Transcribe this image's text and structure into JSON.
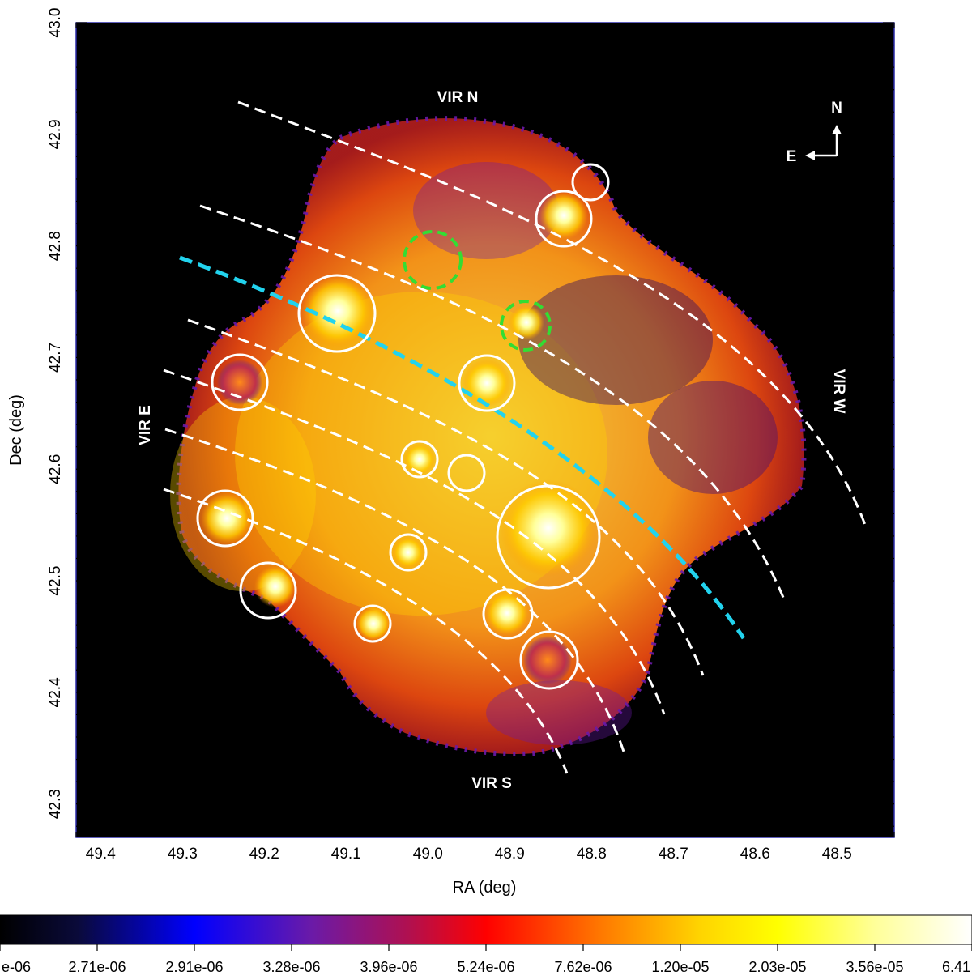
{
  "chart_data": {
    "type": "heatmap",
    "title": "",
    "xlabel": "RA (deg)",
    "ylabel": "Dec (deg)",
    "xlim": [
      49.43,
      48.43
    ],
    "ylim": [
      42.27,
      43.0
    ],
    "x_ticks": [
      "49.4",
      "49.3",
      "49.2",
      "49.1",
      "49.0",
      "48.9",
      "48.8",
      "48.7",
      "48.6",
      "48.5"
    ],
    "y_ticks": [
      "42.3",
      "42.4",
      "42.5",
      "42.6",
      "42.7",
      "42.8",
      "42.9",
      "43.0"
    ],
    "colorbar_labels": [
      "e-06",
      "2.71e-06",
      "2.91e-06",
      "3.28e-06",
      "3.96e-06",
      "5.24e-06",
      "7.62e-06",
      "1.20e-05",
      "2.03e-05",
      "3.56e-05",
      "6.41"
    ],
    "region_labels": [
      "VIR N",
      "VIR S",
      "VIR E",
      "VIR W"
    ],
    "compass": {
      "north": "N",
      "east": "E"
    },
    "excluded_sources": [
      {
        "ra": 48.8,
        "dec": 42.857,
        "radius_deg": 0.018
      },
      {
        "ra": 48.835,
        "dec": 42.825,
        "radius_deg": 0.026
      },
      {
        "ra": 49.11,
        "dec": 42.741,
        "radius_deg": 0.034
      },
      {
        "ra": 49.225,
        "dec": 42.677,
        "radius_deg": 0.025
      },
      {
        "ra": 48.925,
        "dec": 42.676,
        "radius_deg": 0.025
      },
      {
        "ra": 49.005,
        "dec": 42.608,
        "radius_deg": 0.016
      },
      {
        "ra": 48.955,
        "dec": 42.596,
        "radius_deg": 0.016
      },
      {
        "ra": 49.245,
        "dec": 42.556,
        "radius_deg": 0.026
      },
      {
        "ra": 48.848,
        "dec": 42.544,
        "radius_deg": 0.046
      },
      {
        "ra": 49.02,
        "dec": 42.524,
        "radius_deg": 0.016
      },
      {
        "ra": 49.195,
        "dec": 42.49,
        "radius_deg": 0.025
      },
      {
        "ra": 49.065,
        "dec": 42.46,
        "radius_deg": 0.016
      },
      {
        "ra": 48.9,
        "dec": 42.468,
        "radius_deg": 0.022
      },
      {
        "ra": 48.853,
        "dec": 42.428,
        "radius_deg": 0.026
      }
    ],
    "background_regions": [
      {
        "ra": 48.998,
        "dec": 42.787,
        "radius_deg": 0.026
      },
      {
        "ra": 48.88,
        "dec": 42.728,
        "radius_deg": 0.022
      }
    ],
    "colors": {
      "sector_lines": "#ffffff",
      "shock_front": "#22d3ee",
      "background_regions": "#33dd33",
      "source_circles": "#ffffff",
      "frame": "#2a2aa8"
    }
  }
}
